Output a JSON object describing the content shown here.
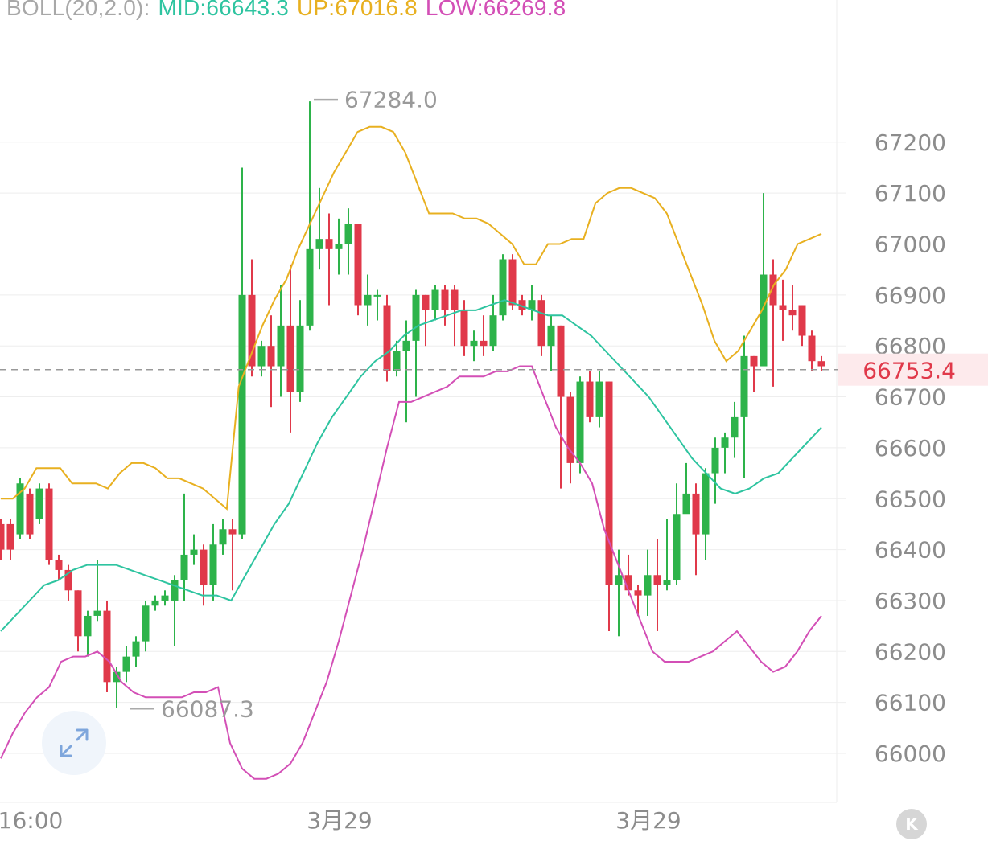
{
  "indicator": {
    "name": "BOLL(20,2.0):",
    "mid_label": "MID:66643.3",
    "up_label": "UP:67016.8",
    "low_label": "LOW:66269.8"
  },
  "colors": {
    "up_candle": "#2db34a",
    "down_candle": "#e0394a",
    "mid": "#2ec4a0",
    "upper": "#e8b020",
    "lower": "#d34fb6",
    "price_line": "#999999",
    "price_label": "#e0394a"
  },
  "chart_data": {
    "type": "candlestick",
    "y_ticks": [
      67200,
      67100,
      67000,
      66900,
      66800,
      66700,
      66600,
      66500,
      66400,
      66300,
      66200,
      66100,
      66000
    ],
    "y_tick_labels": [
      "67200",
      "67100",
      "67000",
      "66900",
      "66800",
      "66700",
      "66600",
      "66500",
      "66400",
      "66300",
      "66200",
      "66100",
      "66000"
    ],
    "x_labels": [
      "16:00",
      "3月29",
      "3月29"
    ],
    "high_marker": {
      "value": 67284.0,
      "label": "67284.0"
    },
    "low_marker": {
      "value": 66087.3,
      "label": "66087.3"
    },
    "current_price": {
      "value": 66753.4,
      "label": "66753.4"
    },
    "candles": [
      [
        66450,
        66400,
        66460,
        66380
      ],
      [
        66450,
        66400,
        66460,
        66380
      ],
      [
        66430,
        66530,
        66540,
        66420
      ],
      [
        66510,
        66430,
        66520,
        66420
      ],
      [
        66460,
        66520,
        66530,
        66450
      ],
      [
        66520,
        66380,
        66530,
        66370
      ],
      [
        66380,
        66360,
        66390,
        66340
      ],
      [
        66360,
        66320,
        66370,
        66300
      ],
      [
        66320,
        66230,
        66320,
        66200
      ],
      [
        66230,
        66270,
        66280,
        66190
      ],
      [
        66270,
        66280,
        66380,
        66260
      ],
      [
        66280,
        66140,
        66300,
        66120
      ],
      [
        66140,
        66160,
        66170,
        66090
      ],
      [
        66160,
        66190,
        66210,
        66140
      ],
      [
        66190,
        66220,
        66230,
        66170
      ],
      [
        66220,
        66290,
        66300,
        66200
      ],
      [
        66290,
        66300,
        66310,
        66280
      ],
      [
        66300,
        66310,
        66320,
        66290
      ],
      [
        66300,
        66340,
        66350,
        66210
      ],
      [
        66340,
        66390,
        66510,
        66300
      ],
      [
        66390,
        66400,
        66430,
        66370
      ],
      [
        66400,
        66330,
        66410,
        66290
      ],
      [
        66330,
        66410,
        66450,
        66300
      ],
      [
        66410,
        66440,
        66460,
        66390
      ],
      [
        66440,
        66430,
        66460,
        66320
      ],
      [
        66430,
        66900,
        67150,
        66420
      ],
      [
        66900,
        66760,
        66970,
        66740
      ],
      [
        66760,
        66800,
        66810,
        66740
      ],
      [
        66800,
        66760,
        66860,
        66680
      ],
      [
        66760,
        66840,
        66920,
        66700
      ],
      [
        66840,
        66710,
        66960,
        66630
      ],
      [
        66710,
        66840,
        66890,
        66690
      ],
      [
        66840,
        66990,
        67280,
        66830
      ],
      [
        66990,
        67010,
        67110,
        66950
      ],
      [
        67010,
        66990,
        67060,
        66880
      ],
      [
        66990,
        67000,
        67050,
        66940
      ],
      [
        67000,
        67040,
        67070,
        66940
      ],
      [
        67040,
        66880,
        67040,
        66860
      ],
      [
        66880,
        66900,
        66940,
        66840
      ],
      [
        66900,
        66900,
        66910,
        66850
      ],
      [
        66880,
        66750,
        66900,
        66730
      ],
      [
        66750,
        66790,
        66810,
        66740
      ],
      [
        66790,
        66810,
        66850,
        66650
      ],
      [
        66810,
        66900,
        66910,
        66700
      ],
      [
        66900,
        66870,
        66900,
        66800
      ],
      [
        66870,
        66910,
        66920,
        66850
      ],
      [
        66910,
        66870,
        66920,
        66840
      ],
      [
        66910,
        66870,
        66920,
        66800
      ],
      [
        66870,
        66800,
        66890,
        66780
      ],
      [
        66800,
        66810,
        66830,
        66770
      ],
      [
        66810,
        66800,
        66860,
        66780
      ],
      [
        66800,
        66860,
        66900,
        66790
      ],
      [
        66860,
        66970,
        66980,
        66850
      ],
      [
        66970,
        66880,
        66980,
        66870
      ],
      [
        66890,
        66870,
        66900,
        66860
      ],
      [
        66870,
        66890,
        66920,
        66850
      ],
      [
        66890,
        66800,
        66900,
        66780
      ],
      [
        66800,
        66840,
        66860,
        66750
      ],
      [
        66840,
        66700,
        66840,
        66520
      ],
      [
        66700,
        66570,
        66710,
        66530
      ],
      [
        66570,
        66730,
        66740,
        66550
      ],
      [
        66730,
        66660,
        66750,
        66650
      ],
      [
        66660,
        66730,
        66750,
        66640
      ],
      [
        66730,
        66330,
        66730,
        66240
      ],
      [
        66330,
        66350,
        66400,
        66230
      ],
      [
        66350,
        66320,
        66390,
        66310
      ],
      [
        66320,
        66310,
        66330,
        66270
      ],
      [
        66310,
        66350,
        66400,
        66270
      ],
      [
        66350,
        66330,
        66420,
        66240
      ],
      [
        66330,
        66340,
        66460,
        66320
      ],
      [
        66340,
        66470,
        66530,
        66330
      ],
      [
        66470,
        66510,
        66570,
        66480
      ],
      [
        66510,
        66430,
        66530,
        66350
      ],
      [
        66430,
        66550,
        66560,
        66380
      ],
      [
        66550,
        66600,
        66620,
        66490
      ],
      [
        66600,
        66620,
        66630,
        66550
      ],
      [
        66620,
        66660,
        66690,
        66580
      ],
      [
        66660,
        66780,
        66820,
        66540
      ],
      [
        66780,
        66760,
        66780,
        66710
      ],
      [
        66760,
        66940,
        67100,
        66760
      ],
      [
        66940,
        66880,
        66970,
        66720
      ],
      [
        66880,
        66870,
        66930,
        66810
      ],
      [
        66870,
        66860,
        66920,
        66830
      ],
      [
        66880,
        66820,
        66880,
        66800
      ],
      [
        66820,
        66770,
        66830,
        66750
      ],
      [
        66770,
        66760,
        66780,
        66750
      ]
    ],
    "boll_upper": [
      66500,
      66500,
      66520,
      66560,
      66560,
      66560,
      66530,
      66530,
      66530,
      66520,
      66550,
      66570,
      66570,
      66560,
      66540,
      66540,
      66530,
      66520,
      66500,
      66480,
      66720,
      66780,
      66840,
      66890,
      66930,
      66990,
      67040,
      67090,
      67140,
      67180,
      67220,
      67230,
      67230,
      67220,
      67180,
      67120,
      67060,
      67060,
      67060,
      67050,
      67050,
      67040,
      67020,
      67000,
      66960,
      66960,
      67000,
      67000,
      67010,
      67010,
      67080,
      67100,
      67110,
      67110,
      67100,
      67090,
      67060,
      67000,
      66940,
      66880,
      66810,
      66770,
      66790,
      66830,
      66870,
      66920,
      66950,
      67000,
      67010,
      67020
    ],
    "boll_mid": [
      66240,
      66270,
      66300,
      66330,
      66340,
      66360,
      66370,
      66370,
      66370,
      66360,
      66350,
      66340,
      66330,
      66320,
      66310,
      66310,
      66300,
      66350,
      66400,
      66450,
      66490,
      66550,
      66610,
      66660,
      66700,
      66740,
      66770,
      66790,
      66820,
      66840,
      66850,
      66860,
      66870,
      66870,
      66880,
      66890,
      66880,
      66870,
      66860,
      66860,
      66840,
      66820,
      66790,
      66760,
      66730,
      66700,
      66660,
      66620,
      66580,
      66550,
      66520,
      66510,
      66520,
      66540,
      66550,
      66580,
      66610,
      66640
    ],
    "boll_lower": [
      65990,
      66040,
      66080,
      66110,
      66130,
      66180,
      66190,
      66190,
      66200,
      66180,
      66140,
      66120,
      66110,
      66110,
      66110,
      66110,
      66120,
      66120,
      66130,
      66020,
      65970,
      65950,
      65950,
      65960,
      65980,
      66020,
      66080,
      66140,
      66220,
      66310,
      66400,
      66500,
      66600,
      66690,
      66690,
      66700,
      66710,
      66720,
      66740,
      66740,
      66740,
      66750,
      66750,
      66760,
      66760,
      66700,
      66640,
      66600,
      66570,
      66530,
      66440,
      66380,
      66320,
      66260,
      66200,
      66180,
      66180,
      66180,
      66190,
      66200,
      66220,
      66240,
      66210,
      66180,
      66160,
      66170,
      66200,
      66240,
      66270
    ]
  }
}
